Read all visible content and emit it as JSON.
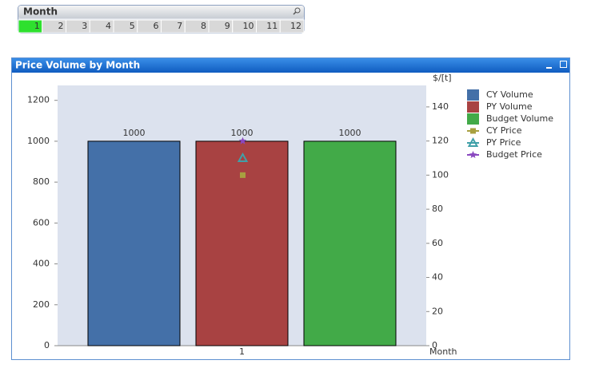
{
  "listbox": {
    "title": "Month",
    "items": [
      "1",
      "2",
      "3",
      "4",
      "5",
      "6",
      "7",
      "8",
      "9",
      "10",
      "11",
      "12"
    ],
    "selected_index": 0
  },
  "chart_data": {
    "type": "combo",
    "title": "Price Volume by Month",
    "categories": [
      "1"
    ],
    "x_label": "Month",
    "y2_label": "$/[t]",
    "ylim": [
      0,
      1273
    ],
    "yticks": [
      0,
      200,
      400,
      600,
      800,
      1000,
      1200
    ],
    "y2lim": [
      0,
      152.6
    ],
    "y2ticks": [
      0,
      20,
      40,
      60,
      80,
      100,
      120,
      140
    ],
    "series": [
      {
        "name": "CY Volume",
        "color": "#4470a8",
        "mark": "bar",
        "values": [
          1000
        ]
      },
      {
        "name": "PY Volume",
        "color": "#a84242",
        "mark": "bar",
        "values": [
          1000
        ]
      },
      {
        "name": "Budget Volume",
        "color": "#42aa48",
        "mark": "bar",
        "values": [
          1000
        ]
      },
      {
        "name": "CY Price",
        "color": "#a8a040",
        "mark": "square",
        "axis": "y2",
        "values": [
          100
        ]
      },
      {
        "name": "PY Price",
        "color": "#40a0a8",
        "mark": "triangle",
        "axis": "y2",
        "values": [
          110
        ]
      },
      {
        "name": "Budget Price",
        "color": "#8a48c0",
        "mark": "star",
        "axis": "y2",
        "values": [
          120
        ]
      }
    ]
  }
}
